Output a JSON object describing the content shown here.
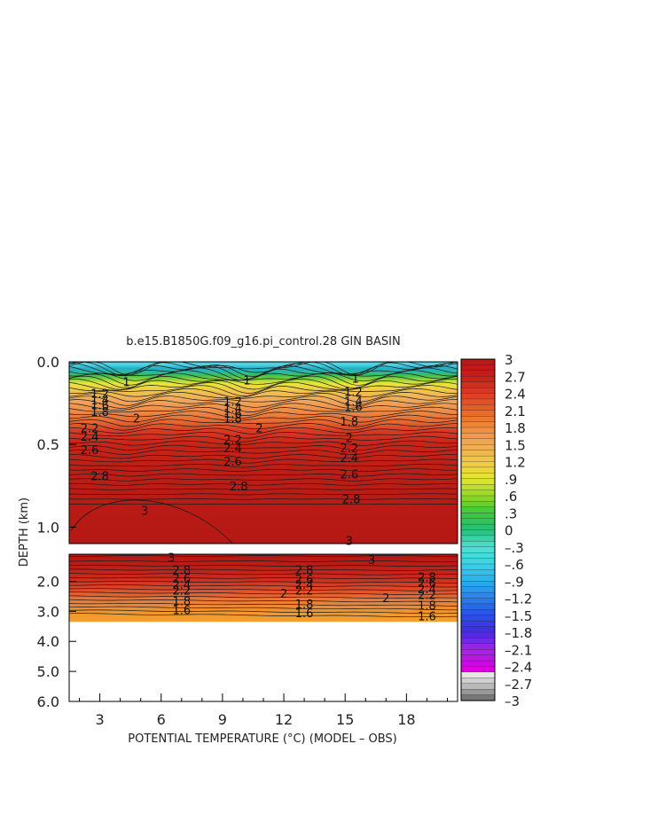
{
  "chart_data": {
    "type": "heatmap",
    "title": "b.e15.B1850G.f09_g16.pi_control.28 GIN BASIN",
    "xlabel": "POTENTIAL TEMPERATURE (°C) (MODEL – OBS)",
    "ylabel": "DEPTH (km)",
    "x_ticks": [
      "3",
      "6",
      "9",
      "12",
      "15",
      "18"
    ],
    "x_tick_values": [
      3,
      6,
      9,
      12,
      15,
      18
    ],
    "xlim": [
      1.5,
      20.5
    ],
    "upper_panel": {
      "ylim": [
        0.0,
        1.1
      ],
      "y_ticks": [
        "0.0",
        "0.5",
        "1.0"
      ],
      "y_tick_values": [
        0.0,
        0.5,
        1.0
      ]
    },
    "lower_panel": {
      "ylim": [
        1.1,
        6.0
      ],
      "y_ticks": [
        "2.0",
        "3.0",
        "4.0",
        "5.0",
        "6.0"
      ],
      "y_tick_values": [
        2.0,
        3.0,
        4.0,
        5.0,
        6.0
      ],
      "data_bottom_depth": 3.35
    },
    "colorbar": {
      "labels": [
        "3",
        "2.7",
        "2.4",
        "2.1",
        "1.8",
        "1.5",
        "1.2",
        ".9",
        ".6",
        ".3",
        "0",
        "–.3",
        "–.6",
        "–.9",
        "–1.2",
        "–1.5",
        "–1.8",
        "–2.1",
        "–2.4",
        "–2.7",
        "–3"
      ],
      "values": [
        3,
        2.7,
        2.4,
        2.1,
        1.8,
        1.5,
        1.2,
        0.9,
        0.6,
        0.3,
        0,
        -0.3,
        -0.6,
        -0.9,
        -1.2,
        -1.5,
        -1.8,
        -2.1,
        -2.4,
        -2.7,
        -3
      ],
      "range": [
        -3,
        3
      ]
    },
    "contour_labels": {
      "upper": [
        {
          "x": 4.3,
          "depth": 0.12,
          "text": "1"
        },
        {
          "x": 3.0,
          "depth": 0.19,
          "text": "1.2"
        },
        {
          "x": 3.0,
          "depth": 0.23,
          "text": "1.4"
        },
        {
          "x": 3.0,
          "depth": 0.26,
          "text": "1.6"
        },
        {
          "x": 3.0,
          "depth": 0.3,
          "text": "1.8"
        },
        {
          "x": 4.8,
          "depth": 0.34,
          "text": "2"
        },
        {
          "x": 2.5,
          "depth": 0.4,
          "text": "2.2"
        },
        {
          "x": 2.5,
          "depth": 0.45,
          "text": "2.4"
        },
        {
          "x": 2.5,
          "depth": 0.53,
          "text": "2.6"
        },
        {
          "x": 3.0,
          "depth": 0.69,
          "text": "2.8"
        },
        {
          "x": 5.2,
          "depth": 0.9,
          "text": "3"
        },
        {
          "x": 10.2,
          "depth": 0.11,
          "text": "1"
        },
        {
          "x": 9.5,
          "depth": 0.24,
          "text": "1.2"
        },
        {
          "x": 9.5,
          "depth": 0.28,
          "text": "1.4"
        },
        {
          "x": 9.5,
          "depth": 0.31,
          "text": "1.6"
        },
        {
          "x": 9.5,
          "depth": 0.34,
          "text": "1.8"
        },
        {
          "x": 10.8,
          "depth": 0.4,
          "text": "2"
        },
        {
          "x": 9.5,
          "depth": 0.47,
          "text": "2.2"
        },
        {
          "x": 9.5,
          "depth": 0.52,
          "text": "2.4"
        },
        {
          "x": 9.5,
          "depth": 0.6,
          "text": "2.6"
        },
        {
          "x": 9.8,
          "depth": 0.75,
          "text": "2.8"
        },
        {
          "x": 15.5,
          "depth": 0.1,
          "text": "1"
        },
        {
          "x": 15.4,
          "depth": 0.18,
          "text": "1.2"
        },
        {
          "x": 15.4,
          "depth": 0.24,
          "text": "1.4"
        },
        {
          "x": 15.4,
          "depth": 0.27,
          "text": "1.6"
        },
        {
          "x": 15.2,
          "depth": 0.36,
          "text": "1.8"
        },
        {
          "x": 15.2,
          "depth": 0.46,
          "text": "2"
        },
        {
          "x": 15.2,
          "depth": 0.52,
          "text": "2.2"
        },
        {
          "x": 15.2,
          "depth": 0.58,
          "text": "2.4"
        },
        {
          "x": 15.2,
          "depth": 0.68,
          "text": "2.6"
        },
        {
          "x": 15.3,
          "depth": 0.83,
          "text": "2.8"
        },
        {
          "x": 15.2,
          "depth": 1.08,
          "text": "3"
        }
      ],
      "lower": [
        {
          "x": 7.0,
          "depth": 1.62,
          "text": "2.8"
        },
        {
          "x": 7.0,
          "depth": 1.9,
          "text": "2.6"
        },
        {
          "x": 7.0,
          "depth": 2.1,
          "text": "2.4"
        },
        {
          "x": 7.0,
          "depth": 2.3,
          "text": "2.2"
        },
        {
          "x": 7.0,
          "depth": 2.65,
          "text": "1.8"
        },
        {
          "x": 7.0,
          "depth": 2.95,
          "text": "1.6"
        },
        {
          "x": 13.0,
          "depth": 1.62,
          "text": "2.8"
        },
        {
          "x": 13.0,
          "depth": 1.92,
          "text": "2.6"
        },
        {
          "x": 13.0,
          "depth": 2.1,
          "text": "2.4"
        },
        {
          "x": 13.0,
          "depth": 2.3,
          "text": "2.2"
        },
        {
          "x": 12.0,
          "depth": 2.4,
          "text": "2"
        },
        {
          "x": 13.0,
          "depth": 2.75,
          "text": "1.8"
        },
        {
          "x": 13.0,
          "depth": 3.05,
          "text": "1.6"
        },
        {
          "x": 19.0,
          "depth": 1.85,
          "text": "2.8"
        },
        {
          "x": 19.0,
          "depth": 2.05,
          "text": "2.6"
        },
        {
          "x": 19.0,
          "depth": 2.25,
          "text": "2.4"
        },
        {
          "x": 19.0,
          "depth": 2.45,
          "text": "2.2"
        },
        {
          "x": 17.0,
          "depth": 2.55,
          "text": "2"
        },
        {
          "x": 19.0,
          "depth": 2.8,
          "text": "1.8"
        },
        {
          "x": 19.0,
          "depth": 3.15,
          "text": "1.6"
        },
        {
          "x": 6.5,
          "depth": 1.2,
          "text": "3"
        },
        {
          "x": 16.3,
          "depth": 1.28,
          "text": "3"
        }
      ]
    },
    "grid": false,
    "legend": "colorbar-right"
  }
}
